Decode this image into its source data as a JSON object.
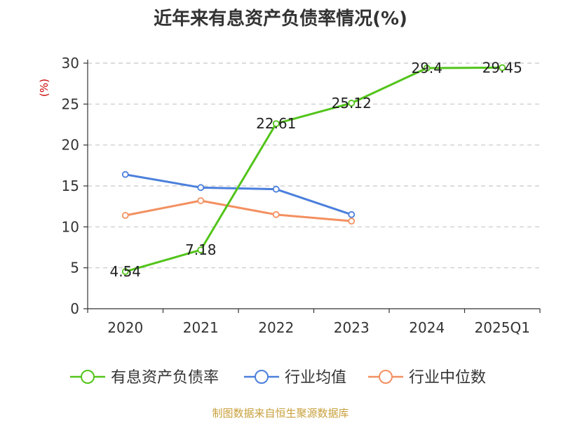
{
  "title": "近年来有息资产负债率情况(%)",
  "source": "制图数据来自恒生聚源数据库",
  "chart_data": {
    "type": "line",
    "title": "近年来有息资产负债率情况(%)",
    "ylabel": "(%)",
    "categories": [
      "2020",
      "2021",
      "2022",
      "2023",
      "2024",
      "2025Q1"
    ],
    "ylim": [
      0,
      30
    ],
    "yticks": [
      0,
      5,
      10,
      15,
      20,
      25,
      30
    ],
    "grid": true,
    "legend_position": "bottom",
    "series": [
      {
        "name": "有息资产负债率",
        "color": "#52c41a",
        "values": [
          4.54,
          7.18,
          22.61,
          25.12,
          29.4,
          29.45
        ],
        "labels": [
          "4.54",
          "7.18",
          "22.61",
          "25.12",
          "29.4",
          "29.45"
        ]
      },
      {
        "name": "行业均值",
        "color": "#4a7fdc",
        "values": [
          16.4,
          14.8,
          14.6,
          11.5,
          null,
          null
        ]
      },
      {
        "name": "行业中位数",
        "color": "#f39060",
        "values": [
          11.4,
          13.2,
          11.5,
          10.7,
          null,
          null
        ]
      }
    ]
  }
}
